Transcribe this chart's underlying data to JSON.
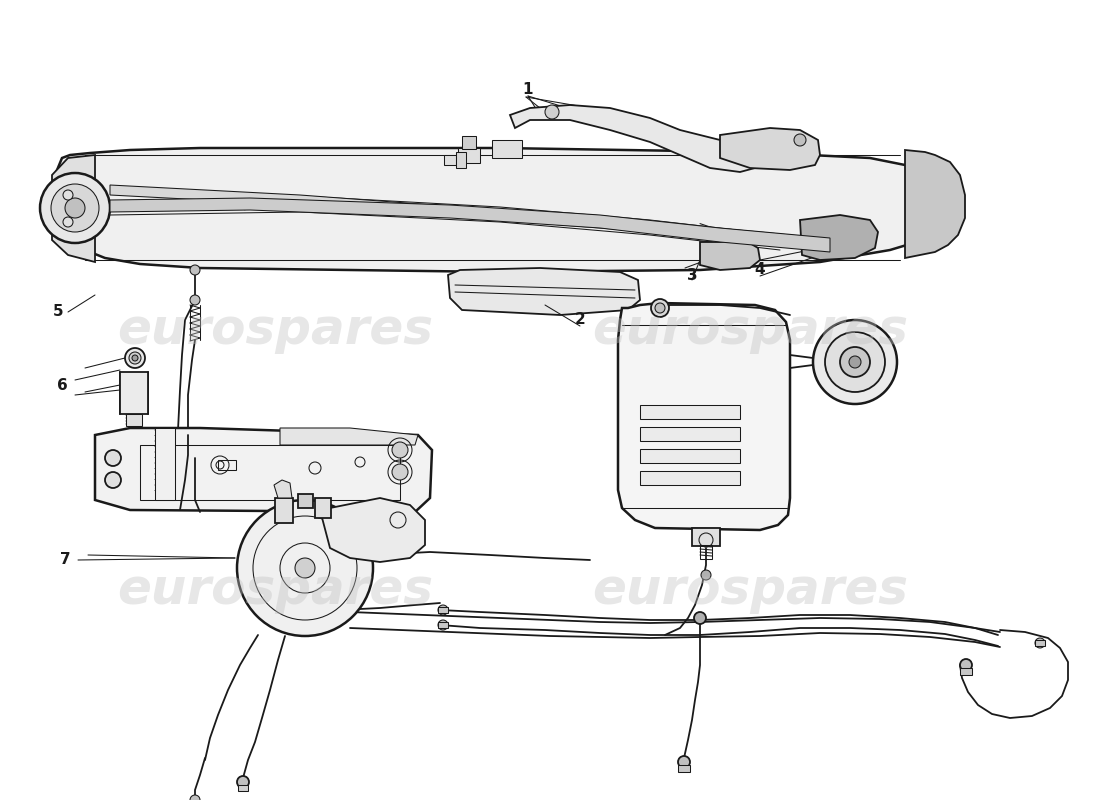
{
  "bg_color": "#ffffff",
  "line_color": "#1a1a1a",
  "watermark": "eurospares",
  "watermark_color": "#c0c0c0",
  "watermark_alpha": 0.38,
  "lw_main": 1.3,
  "lw_thick": 1.8,
  "lw_thin": 0.75
}
